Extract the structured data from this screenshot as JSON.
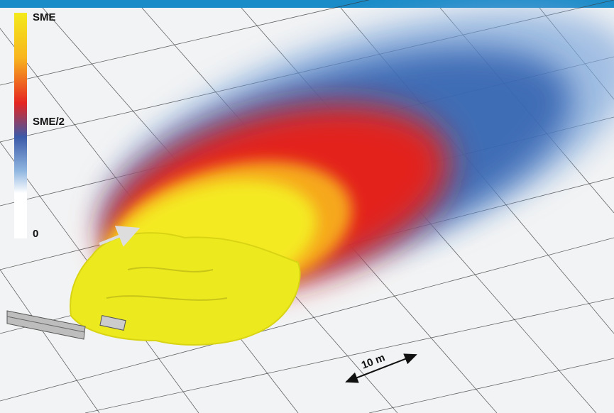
{
  "colorbar": {
    "labels": [
      "SME",
      "SME/2",
      "0"
    ]
  },
  "scale_bar": {
    "label": "10 m"
  }
}
